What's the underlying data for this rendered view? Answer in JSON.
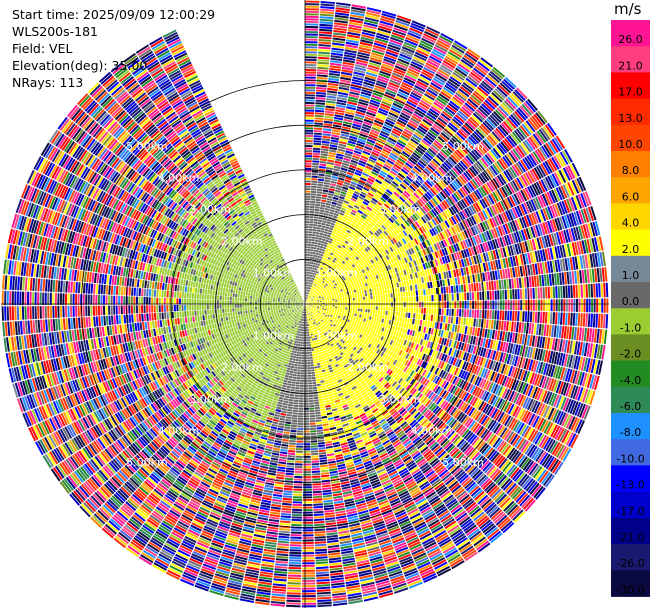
{
  "header": {
    "start_time": "Start time: 2025/09/09 12:00:29",
    "site": "WLS200s-181",
    "field": "Field: VEL",
    "elevation": "Elevation(deg): 35.00",
    "nrays": "NRays: 113"
  },
  "colorbar": {
    "unit": "m/s",
    "bins": [
      {
        "label": "26.0",
        "color": "#ff1493"
      },
      {
        "label": "21.0",
        "color": "#ff3d7f"
      },
      {
        "label": "17.0",
        "color": "#ff0000"
      },
      {
        "label": "13.0",
        "color": "#ff2a00"
      },
      {
        "label": "10.0",
        "color": "#ff4500"
      },
      {
        "label": "8.0",
        "color": "#ff7f00"
      },
      {
        "label": "6.0",
        "color": "#ffa500"
      },
      {
        "label": "4.0",
        "color": "#ffd700"
      },
      {
        "label": "2.0",
        "color": "#ffff00"
      },
      {
        "label": "1.0",
        "color": "#778899"
      },
      {
        "label": "0.0",
        "color": "#696969"
      },
      {
        "label": "-1.0",
        "color": "#9acd32"
      },
      {
        "label": "-2.0",
        "color": "#6b8e23"
      },
      {
        "label": "-4.0",
        "color": "#228b22"
      },
      {
        "label": "-6.0",
        "color": "#2e8b57"
      },
      {
        "label": "-8.0",
        "color": "#1e90ff"
      },
      {
        "label": "-10.0",
        "color": "#4169e1"
      },
      {
        "label": "-13.0",
        "color": "#0000ff"
      },
      {
        "label": "-17.0",
        "color": "#0000cd"
      },
      {
        "label": "-21.0",
        "color": "#00008b"
      },
      {
        "label": "-26.0",
        "color": "#191970"
      },
      {
        "label": "-30.0",
        "color": "#0a0a40"
      }
    ]
  },
  "chart_data": {
    "type": "heatmap",
    "subtype": "polar-ppi",
    "field": "VEL",
    "units": "m/s",
    "max_range_km": 6.8,
    "range_rings_km": [
      1,
      2,
      3,
      4,
      5
    ],
    "ring_labels": [
      "1.00km",
      "2.00km",
      "3.00km",
      "4.00km",
      "5.00km"
    ],
    "missing_sector_deg": [
      -25,
      0
    ],
    "rays": 113,
    "pattern": {
      "inner_region_km": 3.0,
      "east_half_value_mps": 3.0,
      "west_half_value_mps": -1.0,
      "transition_values_mps": [
        0.0,
        0.5
      ],
      "outer_region": "noisy values spanning full scale (-30 to 30 m/s)"
    },
    "grid": true
  }
}
